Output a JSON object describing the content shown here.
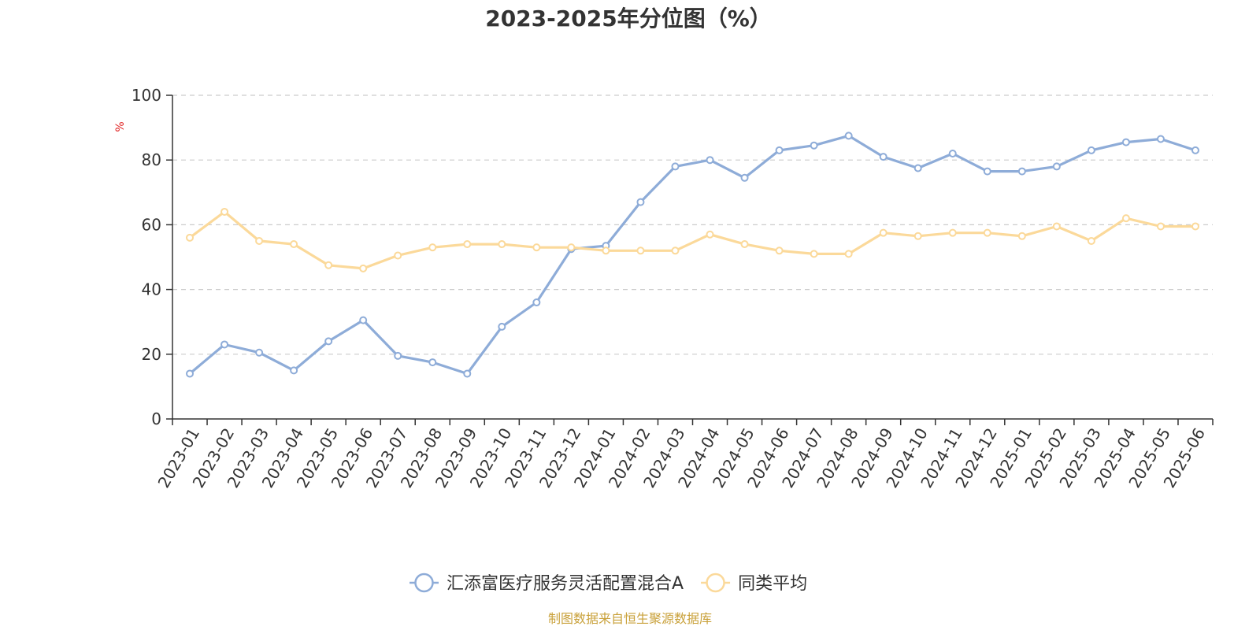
{
  "chart_data": {
    "type": "line",
    "title": "2023-2025年分位图（%）",
    "ylabel": "%",
    "xlabel": "",
    "ylim": [
      0,
      100
    ],
    "yticks": [
      0,
      20,
      40,
      60,
      80,
      100
    ],
    "grid": true,
    "legend_position": "bottom-center",
    "categories": [
      "2023-01",
      "2023-02",
      "2023-03",
      "2023-04",
      "2023-05",
      "2023-06",
      "2023-07",
      "2023-08",
      "2023-09",
      "2023-10",
      "2023-11",
      "2023-12",
      "2024-01",
      "2024-02",
      "2024-03",
      "2024-04",
      "2024-05",
      "2024-06",
      "2024-07",
      "2024-08",
      "2024-09",
      "2024-10",
      "2024-11",
      "2024-12",
      "2025-01",
      "2025-02",
      "2025-03",
      "2025-04",
      "2025-05",
      "2025-06"
    ],
    "series": [
      {
        "name": "汇添富医疗服务灵活配置混合A",
        "color": "#8eacd8",
        "values": [
          14,
          23,
          20.5,
          15,
          24,
          30.5,
          19.5,
          17.5,
          14,
          28.5,
          36,
          52.5,
          53.5,
          67,
          78,
          80,
          74.5,
          83,
          84.5,
          87.5,
          81,
          77.5,
          82,
          76.5,
          76.5,
          78,
          83,
          85.5,
          86.5,
          83
        ]
      },
      {
        "name": "同类平均",
        "color": "#fbd99a",
        "values": [
          56,
          64,
          55,
          54,
          47.5,
          46.5,
          50.5,
          53,
          54,
          54,
          53,
          53,
          52,
          52,
          52,
          57,
          54,
          52,
          51,
          51,
          57.5,
          56.5,
          57.5,
          57.5,
          56.5,
          59.5,
          55,
          62,
          59.5,
          59.5
        ]
      }
    ]
  },
  "source": {
    "text": "制图数据来自恒生聚源数据库",
    "color": "#c9a13a"
  },
  "unit_color": "#e02020"
}
